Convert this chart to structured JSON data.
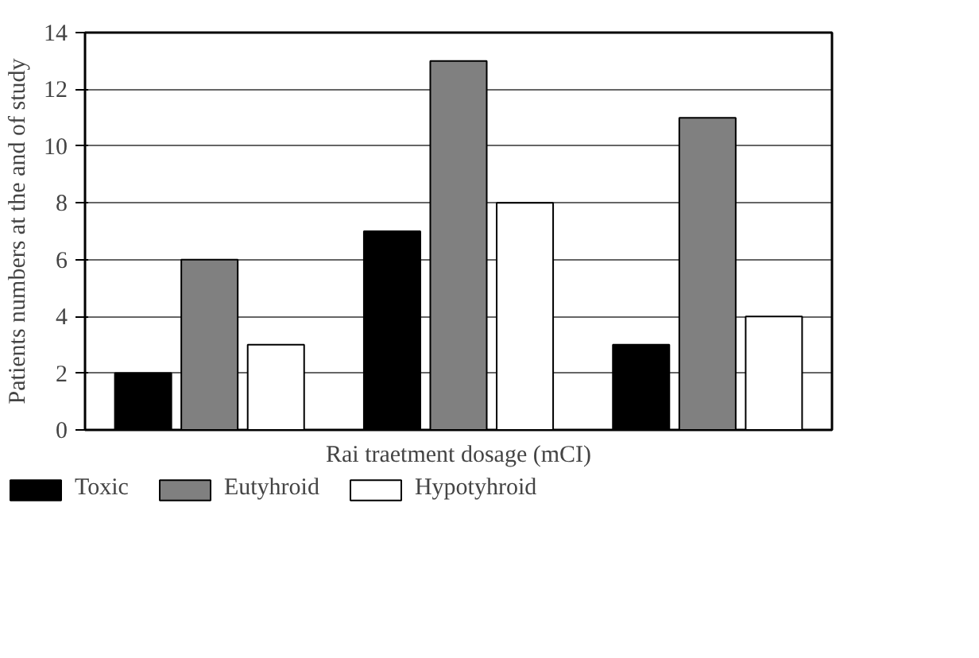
{
  "chart_data": {
    "type": "bar",
    "xlabel": "Rai traetment dosage (mCI)",
    "ylabel": "Patients numbers at the and of study",
    "categories": [
      null,
      null,
      null
    ],
    "series": [
      {
        "name": "Toxic",
        "color": "#000000",
        "values": [
          2,
          7,
          3
        ]
      },
      {
        "name": "Eutyhroid",
        "color": "#808080",
        "values": [
          6,
          13,
          11
        ]
      },
      {
        "name": "Hypotyhroid",
        "color": "#ffffff",
        "values": [
          3,
          8,
          4
        ]
      }
    ],
    "ylim": [
      0,
      14
    ],
    "yticks": [
      0,
      2,
      4,
      6,
      8,
      10,
      12,
      14
    ],
    "grid": "y",
    "legend": "bottom",
    "tick_labels": "y"
  }
}
